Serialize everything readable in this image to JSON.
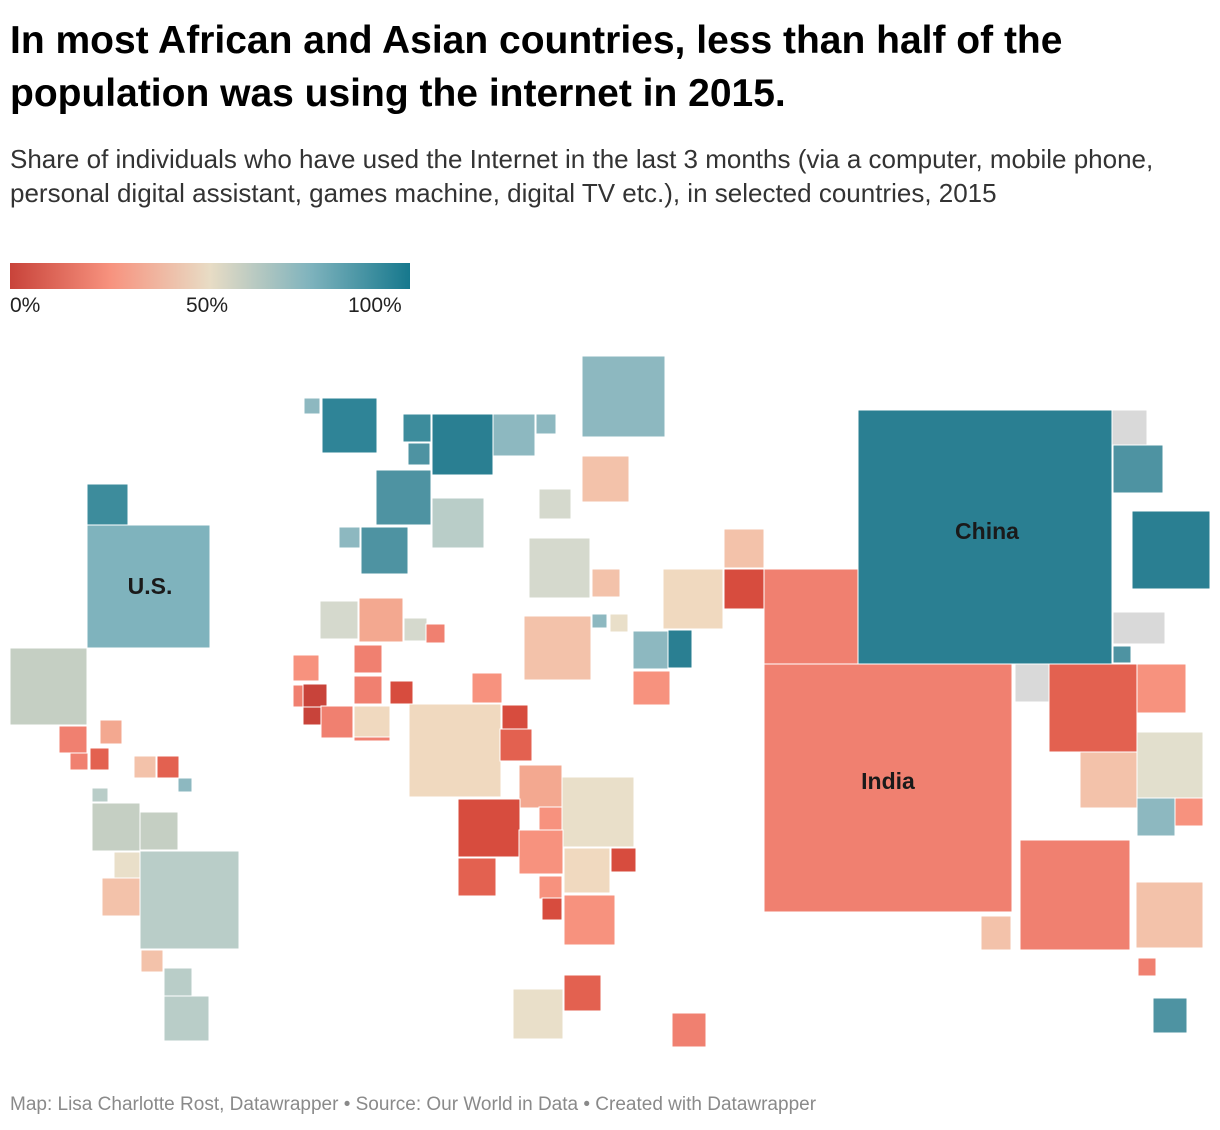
{
  "header": {
    "title": "In most African and Asian countries, less than half of the population was using the internet in 2015.",
    "subtitle": "Share of individuals who have used the Internet in the last 3 months (via a computer, mobile phone, personal digital assistant, games machine, digital TV etc.), in selected countries, 2015"
  },
  "legend": {
    "min_label": "0%",
    "mid_label": "50%",
    "max_label": "100%",
    "colors": [
      "#c8433a",
      "#f7927e",
      "#e8dcc5",
      "#7fb3bd",
      "#16788d"
    ]
  },
  "map": {
    "labels": {
      "china": "China",
      "india": "India",
      "us": "U.S."
    },
    "no_data_color": "#d9d9d9",
    "tiles": [
      {
        "c": "#7fb3bd"
      },
      {
        "c": "#3d8c9c"
      },
      {
        "c": "#c5cfc3"
      },
      {
        "c": "#f08070"
      },
      {
        "c": "#f3a890"
      },
      {
        "c": "#e36150"
      },
      {
        "c": "#f08070"
      },
      {
        "c": "#f3c2aa"
      },
      {
        "c": "#e36150"
      },
      {
        "c": "#c5cfc3"
      },
      {
        "c": "#c5cfc3"
      },
      {
        "c": "#b9cdc8"
      },
      {
        "c": "#b9cdc8"
      },
      {
        "c": "#e9dfc9"
      },
      {
        "c": "#f3c2aa"
      },
      {
        "c": "#b9cdc8"
      },
      {
        "c": "#b9cdc8"
      },
      {
        "c": "#f3c2aa"
      },
      {
        "c": "#8db8c0"
      },
      {
        "c": "#8db8c0"
      },
      {
        "c": "#2f8497"
      },
      {
        "c": "#4e93a2"
      },
      {
        "c": "#2a7f92"
      },
      {
        "c": "#3d8c9c"
      },
      {
        "c": "#4e93a2"
      },
      {
        "c": "#b9cdc8"
      },
      {
        "c": "#8db8c0"
      },
      {
        "c": "#8db8c0"
      },
      {
        "c": "#4e93a2"
      },
      {
        "c": "#8db8c0"
      },
      {
        "c": "#d5d9cd"
      },
      {
        "c": "#f0d9bf"
      },
      {
        "c": "#d5d9cd"
      },
      {
        "c": "#8db8c0"
      },
      {
        "c": "#d5d9cd"
      },
      {
        "c": "#d5d9cd"
      },
      {
        "c": "#f3c2aa"
      },
      {
        "c": "#f0d9bf"
      },
      {
        "c": "#f08070"
      },
      {
        "c": "#f7927e"
      },
      {
        "c": "#f08070"
      },
      {
        "c": "#c8433a"
      },
      {
        "c": "#f08070"
      },
      {
        "c": "#f08070"
      },
      {
        "c": "#d74c3e"
      },
      {
        "c": "#f08070"
      },
      {
        "c": "#f0d9bf"
      },
      {
        "c": "#c8433a"
      },
      {
        "c": "#f08070"
      },
      {
        "c": "#f7927e"
      },
      {
        "c": "#f3a890"
      },
      {
        "c": "#d74c3e"
      },
      {
        "c": "#e36150"
      },
      {
        "c": "#f3a890"
      },
      {
        "c": "#e9dfc9"
      },
      {
        "c": "#d74c3e"
      },
      {
        "c": "#f7927e"
      },
      {
        "c": "#f7927e"
      },
      {
        "c": "#f0d9bf"
      },
      {
        "c": "#e36150"
      },
      {
        "c": "#f7927e"
      },
      {
        "c": "#d74c3e"
      },
      {
        "c": "#f7927e"
      },
      {
        "c": "#e36150"
      },
      {
        "c": "#e9dfc9"
      },
      {
        "c": "#f3c2aa"
      },
      {
        "c": "#8db8c0"
      },
      {
        "c": "#f7927e"
      },
      {
        "c": "#f3c2aa"
      },
      {
        "c": "#d74c3e"
      },
      {
        "c": "#f3c2aa"
      },
      {
        "c": "#d74c3e"
      },
      {
        "c": "#f0d9bf"
      },
      {
        "c": "#e9dfc9"
      },
      {
        "c": "#8db8c0"
      },
      {
        "c": "#2a7f92"
      },
      {
        "c": "#d9d9d9"
      },
      {
        "c": "#3d8c9c"
      },
      {
        "c": "#d9d9d9"
      },
      {
        "c": "#4e93a2"
      },
      {
        "c": "#f08070"
      },
      {
        "c": "#e36150"
      },
      {
        "c": "#f7927e"
      },
      {
        "c": "#f3c2aa"
      },
      {
        "c": "#e2dfcd"
      },
      {
        "c": "#8db8c0"
      },
      {
        "c": "#f08070"
      },
      {
        "c": "#f7927e"
      },
      {
        "c": "#f3c2aa"
      },
      {
        "c": "#f3c2aa"
      },
      {
        "c": "#d74c3e"
      },
      {
        "c": "#4e93a2"
      },
      {
        "c": "#2a7f92"
      },
      {
        "c": "#f08070"
      },
      {
        "c": "#d9d9d9"
      },
      {
        "c": "#2a7f92"
      },
      {
        "c": "#4e93a2"
      },
      {
        "c": "#f08070"
      },
      {
        "c": "#f08070"
      }
    ]
  },
  "footer": {
    "source": "Map: Lisa Charlotte Rost, Datawrapper • Source: Our World in Data • Created with Datawrapper"
  }
}
